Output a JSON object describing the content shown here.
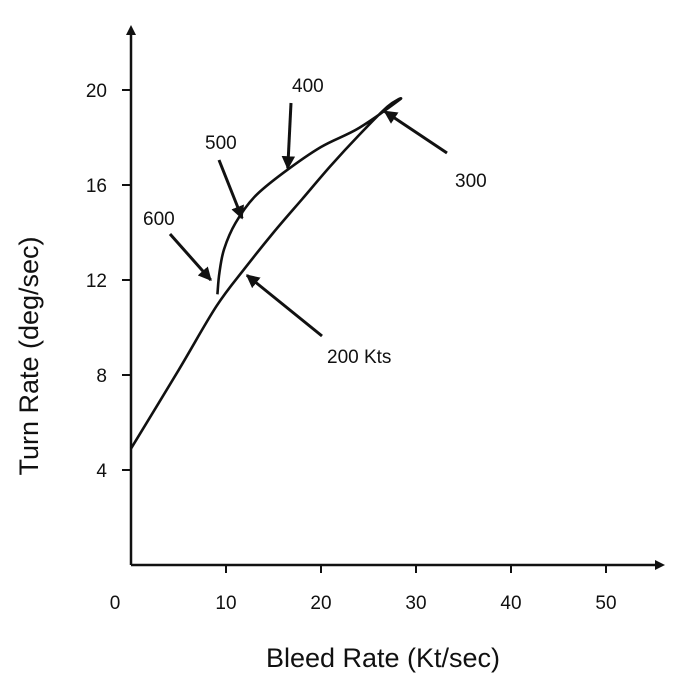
{
  "chart_data": {
    "type": "line",
    "title": "",
    "xlabel": "Bleed Rate (Kt/sec)",
    "ylabel": "Turn Rate (deg/sec)",
    "xlim": [
      0,
      55
    ],
    "ylim": [
      0,
      22
    ],
    "x_ticks": [
      0,
      10,
      20,
      30,
      40,
      50
    ],
    "y_ticks": [
      4,
      8,
      12,
      16,
      20
    ],
    "x_tick_labels": [
      "0",
      "10",
      "20",
      "30",
      "40",
      "50"
    ],
    "y_tick_labels": [
      "4",
      "8",
      "12",
      "16",
      "20"
    ],
    "grid": false,
    "series": [
      {
        "points": [
          [
            0,
            4.9
          ],
          [
            5,
            8.2
          ],
          [
            9,
            10.9
          ],
          [
            12,
            12.5
          ],
          [
            15,
            14.0
          ],
          [
            18,
            15.4
          ],
          [
            21,
            16.8
          ],
          [
            24,
            18.1
          ],
          [
            27,
            19.3
          ],
          [
            28.3,
            19.6
          ],
          [
            24,
            18.4
          ],
          [
            20,
            17.6
          ],
          [
            16,
            16.5
          ],
          [
            13,
            15.5
          ],
          [
            11,
            14.4
          ],
          [
            9.8,
            13.3
          ],
          [
            9.3,
            12.3
          ],
          [
            9.1,
            11.4
          ]
        ]
      }
    ],
    "annotations": [
      {
        "text": "200 Kts",
        "point": [
          12.2,
          12.2
        ]
      },
      {
        "text": "300",
        "point": [
          26.7,
          19.1
        ]
      },
      {
        "text": "400",
        "point": [
          16.5,
          16.7
        ]
      },
      {
        "text": "500",
        "point": [
          11.7,
          14.6
        ]
      },
      {
        "text": "600",
        "point": [
          8.4,
          12.0
        ]
      }
    ]
  }
}
